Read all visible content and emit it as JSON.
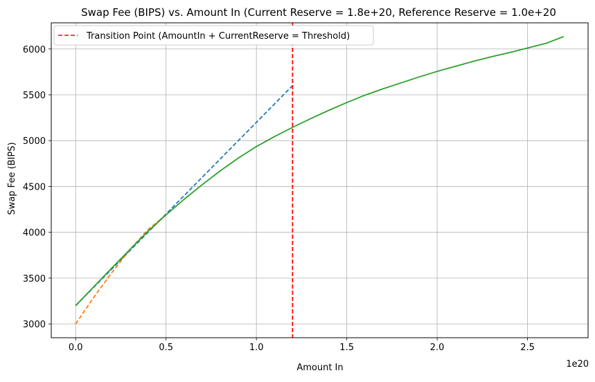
{
  "chart_data": {
    "type": "line",
    "title": "Swap Fee (BIPS) vs. Amount In (Current Reserve = 1.8e+20, Reference Reserve = 1.0e+20",
    "xlabel": "Amount In",
    "ylabel": "Swap Fee (BIPS)",
    "x_scale_label": "1e20",
    "xlim": [
      -0.135,
      2.835
    ],
    "ylim": [
      2850,
      6285
    ],
    "x_ticks": [
      0.0,
      0.5,
      1.0,
      1.5,
      2.0,
      2.5
    ],
    "x_tick_labels": [
      "0.0",
      "0.5",
      "1.0",
      "1.5",
      "2.0",
      "2.5"
    ],
    "y_ticks": [
      3000,
      3500,
      4000,
      4500,
      5000,
      5500,
      6000
    ],
    "y_tick_labels": [
      "3000",
      "3500",
      "4000",
      "4500",
      "5000",
      "5500",
      "6000"
    ],
    "grid": true,
    "legend": {
      "placement": "top-left",
      "entries": [
        "Transition Point (AmountIn + CurrentReserve = Threshold)"
      ]
    },
    "transition_x": 1.2,
    "series": [
      {
        "color": "#1f77b4",
        "dashed": true,
        "x": [
          0.0,
          0.1,
          0.2,
          0.3,
          0.4,
          0.5,
          0.6,
          0.7,
          0.8,
          0.9,
          1.0,
          1.1,
          1.2
        ],
        "y": [
          3200,
          3400,
          3600,
          3800,
          4000,
          4200,
          4400,
          4600,
          4800,
          5000,
          5200,
          5400,
          5600
        ]
      },
      {
        "color": "#ff7f0e",
        "dashed": true,
        "x": [
          0.0,
          0.1,
          0.2,
          0.3,
          0.4,
          0.5
        ],
        "y": [
          3000,
          3290,
          3560,
          3810,
          4030,
          4190
        ]
      },
      {
        "color": "#2ca02c",
        "dashed": false,
        "x": [
          0.0,
          0.1,
          0.2,
          0.3,
          0.4,
          0.5,
          0.6,
          0.7,
          0.8,
          0.9,
          1.0,
          1.1,
          1.2,
          1.3,
          1.4,
          1.5,
          1.6,
          1.7,
          1.8,
          1.9,
          2.0,
          2.1,
          2.2,
          2.3,
          2.4,
          2.5,
          2.6,
          2.7
        ],
        "y": [
          3200,
          3405,
          3610,
          3812,
          4010,
          4190,
          4360,
          4520,
          4670,
          4810,
          4935,
          5045,
          5145,
          5240,
          5330,
          5415,
          5495,
          5565,
          5630,
          5695,
          5755,
          5810,
          5865,
          5915,
          5960,
          6010,
          6060,
          6135
        ]
      }
    ]
  }
}
